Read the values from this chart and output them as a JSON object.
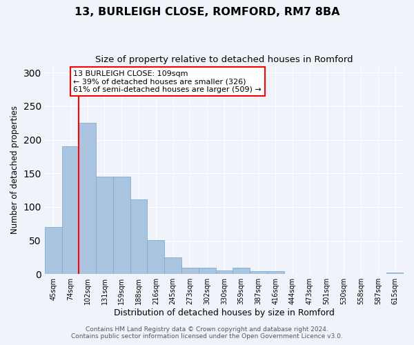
{
  "title": "13, BURLEIGH CLOSE, ROMFORD, RM7 8BA",
  "subtitle": "Size of property relative to detached houses in Romford",
  "xlabel": "Distribution of detached houses by size in Romford",
  "ylabel": "Number of detached properties",
  "bar_labels": [
    "45sqm",
    "74sqm",
    "102sqm",
    "131sqm",
    "159sqm",
    "188sqm",
    "216sqm",
    "245sqm",
    "273sqm",
    "302sqm",
    "330sqm",
    "359sqm",
    "387sqm",
    "416sqm",
    "444sqm",
    "473sqm",
    "501sqm",
    "530sqm",
    "558sqm",
    "587sqm",
    "615sqm"
  ],
  "bar_values": [
    70,
    190,
    225,
    145,
    145,
    111,
    51,
    25,
    9,
    9,
    5,
    9,
    4,
    4,
    0,
    0,
    0,
    0,
    0,
    0,
    2
  ],
  "bar_color": "#aac4e0",
  "bar_edge_color": "#7aafd4",
  "vline_x_index": 2,
  "vline_color": "red",
  "annotation_text": "13 BURLEIGH CLOSE: 109sqm\n← 39% of detached houses are smaller (326)\n61% of semi-detached houses are larger (509) →",
  "annotation_box_edge_color": "red",
  "ylim": [
    0,
    310
  ],
  "yticks": [
    0,
    50,
    100,
    150,
    200,
    250,
    300
  ],
  "footer1": "Contains HM Land Registry data © Crown copyright and database right 2024.",
  "footer2": "Contains public sector information licensed under the Open Government Licence v3.0.",
  "bg_color": "#f0f4fa",
  "plot_bg_color": "#f0f4fa",
  "title_fontsize": 11.5,
  "subtitle_fontsize": 9.5,
  "xlabel_fontsize": 9,
  "ylabel_fontsize": 8.5,
  "tick_fontsize": 7,
  "footer_fontsize": 6.5,
  "annotation_fontsize": 8
}
